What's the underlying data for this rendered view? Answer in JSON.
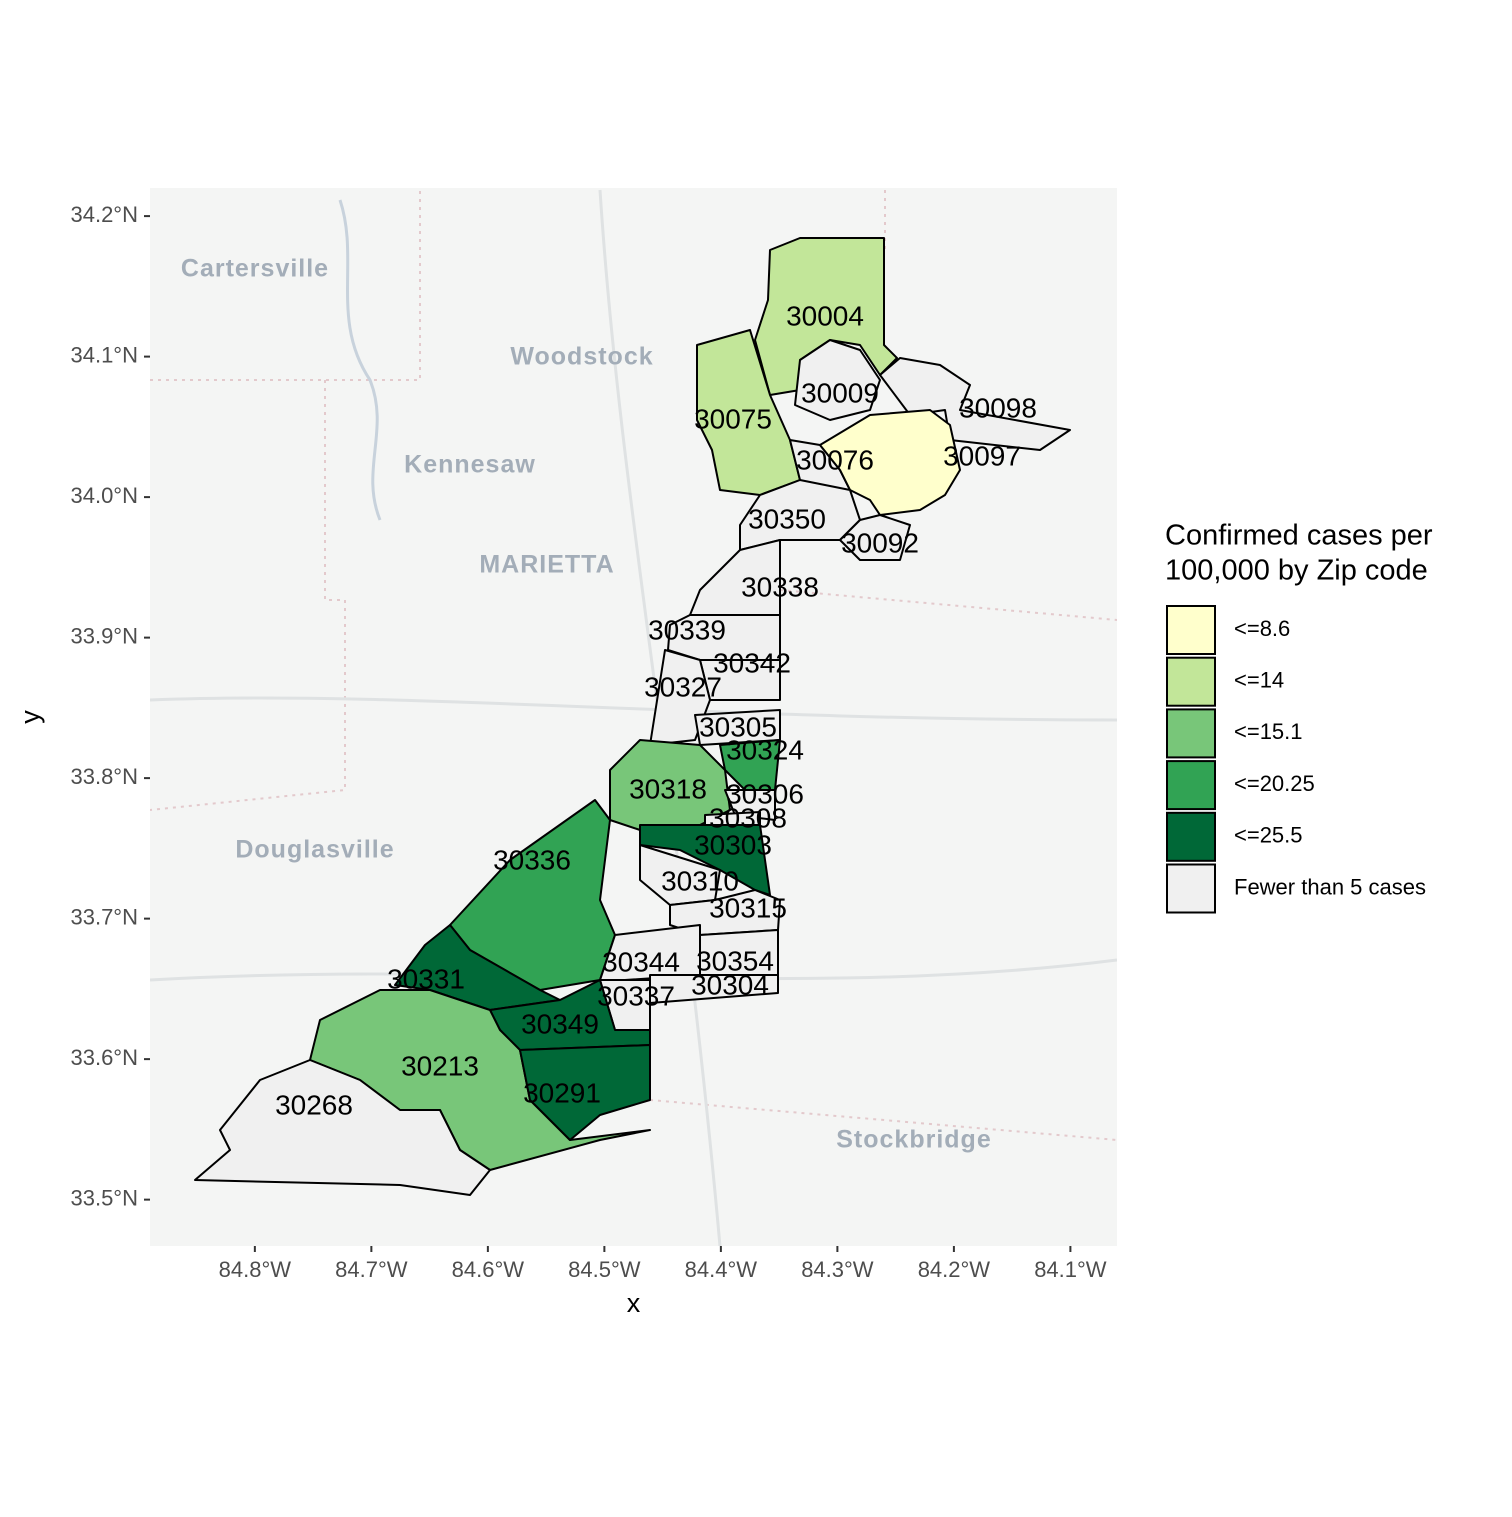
{
  "axes": {
    "x_label": "x",
    "y_label": "y",
    "xlim": [
      -84.89,
      -84.06
    ],
    "ylim": [
      33.467,
      34.22
    ],
    "xticks": [
      {
        "value": -84.8,
        "label": "84.8°W"
      },
      {
        "value": -84.7,
        "label": "84.7°W"
      },
      {
        "value": -84.6,
        "label": "84.6°W"
      },
      {
        "value": -84.5,
        "label": "84.5°W"
      },
      {
        "value": -84.4,
        "label": "84.4°W"
      },
      {
        "value": -84.3,
        "label": "84.3°W"
      },
      {
        "value": -84.2,
        "label": "84.2°W"
      },
      {
        "value": -84.1,
        "label": "84.1°W"
      }
    ],
    "yticks": [
      {
        "value": 33.5,
        "label": "33.5°N"
      },
      {
        "value": 33.6,
        "label": "33.6°N"
      },
      {
        "value": 33.7,
        "label": "33.7°N"
      },
      {
        "value": 33.8,
        "label": "33.8°N"
      },
      {
        "value": 33.9,
        "label": "33.9°N"
      },
      {
        "value": 34.0,
        "label": "34.0°N"
      },
      {
        "value": 34.1,
        "label": "34.1°N"
      },
      {
        "value": 34.2,
        "label": "34.2°N"
      }
    ]
  },
  "basemap_labels": [
    "Cartersville",
    "Woodstock",
    "Kennesaw",
    "MARIETTA",
    "Douglasville",
    "Stockbridge"
  ],
  "legend": {
    "title": [
      "Confirmed cases per",
      " 100,000 by Zip code"
    ],
    "items": [
      {
        "label": "<=8.6",
        "color": "#ffffcc"
      },
      {
        "label": "<=14",
        "color": "#c2e699"
      },
      {
        "label": "<=15.1",
        "color": "#78c679"
      },
      {
        "label": "<=20.25",
        "color": "#31a354"
      },
      {
        "label": "<=25.5",
        "color": "#006837"
      },
      {
        "label": "Fewer than 5 cases",
        "color": "#f0f0f0"
      }
    ]
  },
  "regions": [
    {
      "zip": "30004",
      "color": "#c2e699"
    },
    {
      "zip": "30009",
      "color": "#f0f0f0"
    },
    {
      "zip": "30098",
      "color": "#f0f0f0"
    },
    {
      "zip": "30075",
      "color": "#c2e699"
    },
    {
      "zip": "30076",
      "color": "#f0f0f0"
    },
    {
      "zip": "30097",
      "color": "#ffffcc"
    },
    {
      "zip": "30350",
      "color": "#f0f0f0"
    },
    {
      "zip": "30092",
      "color": "#f0f0f0"
    },
    {
      "zip": "30338",
      "color": "#f0f0f0"
    },
    {
      "zip": "30339",
      "color": "#f0f0f0"
    },
    {
      "zip": "30342",
      "color": "#f0f0f0"
    },
    {
      "zip": "30327",
      "color": "#f0f0f0"
    },
    {
      "zip": "30305",
      "color": "#f0f0f0"
    },
    {
      "zip": "30324",
      "color": "#31a354"
    },
    {
      "zip": "30318",
      "color": "#78c679"
    },
    {
      "zip": "30306",
      "color": "#f0f0f0"
    },
    {
      "zip": "30308",
      "color": "#f0f0f0"
    },
    {
      "zip": "30303",
      "color": "#006837"
    },
    {
      "zip": "30310",
      "color": "#f0f0f0"
    },
    {
      "zip": "30315",
      "color": "#f0f0f0"
    },
    {
      "zip": "30336",
      "color": "#31a354"
    },
    {
      "zip": "30344",
      "color": "#f0f0f0"
    },
    {
      "zip": "30354",
      "color": "#f0f0f0"
    },
    {
      "zip": "30337",
      "color": "#f0f0f0"
    },
    {
      "zip": "30304",
      "color": "#f0f0f0"
    },
    {
      "zip": "30331",
      "color": "#006837"
    },
    {
      "zip": "30349",
      "color": "#006837"
    },
    {
      "zip": "30213",
      "color": "#78c679"
    },
    {
      "zip": "30291",
      "color": "#006837"
    },
    {
      "zip": "30268",
      "color": "#f0f0f0"
    }
  ]
}
